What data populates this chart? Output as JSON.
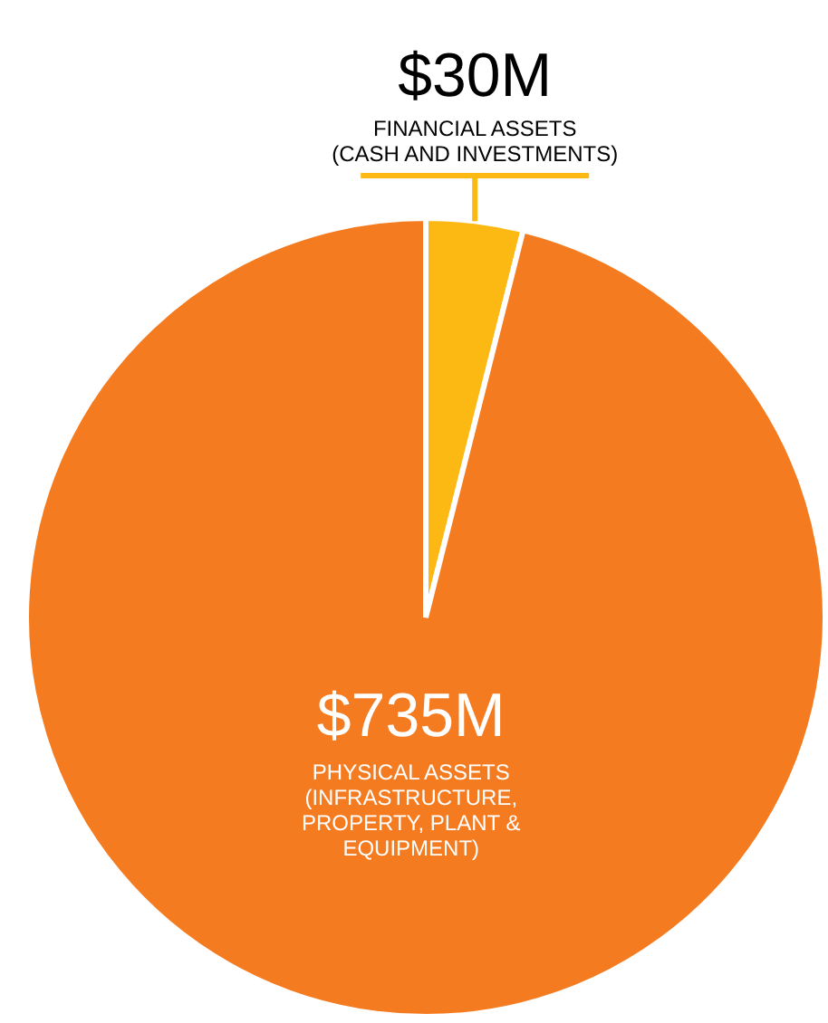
{
  "chart_data": {
    "type": "pie",
    "categories": [
      "FINANCIAL ASSETS (CASH AND INVESTMENTS)",
      "PHYSICAL ASSETS (INFRASTRUCTURE, PROPERTY, PLANT & EQUIPMENT)"
    ],
    "values": [
      30,
      735
    ],
    "colors": [
      "#fdb913",
      "#f47b20"
    ],
    "value_labels": [
      "$30M",
      "$735M"
    ],
    "legend": false
  }
}
